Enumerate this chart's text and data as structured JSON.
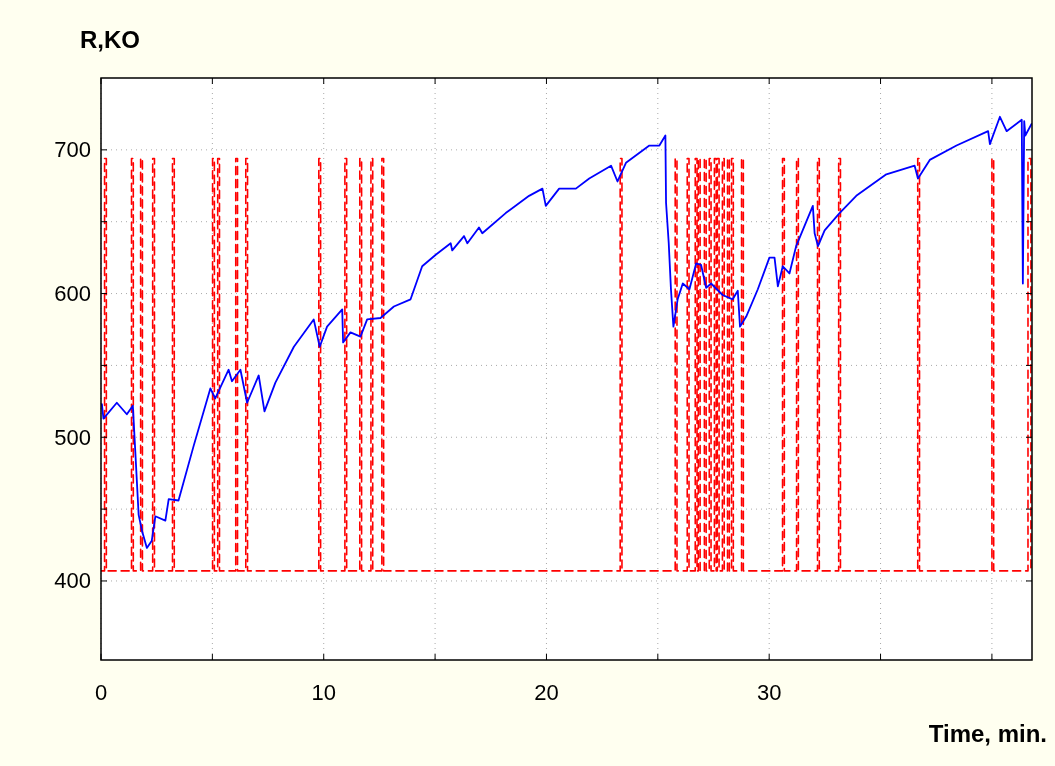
{
  "chart_data": {
    "type": "line",
    "xlabel": "Time, min.",
    "ylabel": "R,KO",
    "xlim": [
      0,
      41.8
    ],
    "ylim": [
      345,
      750
    ],
    "xticks": [
      0,
      {
        "value": 5,
        "label": null
      },
      10,
      {
        "value": 15,
        "label": null
      },
      20,
      {
        "value": 25,
        "label": null
      },
      30,
      {
        "value": 35,
        "label": null
      },
      {
        "value": 40,
        "label": null
      }
    ],
    "yticks": [
      400,
      {
        "value": 450,
        "label": null
      },
      500,
      {
        "value": 550,
        "label": null
      },
      600,
      {
        "value": 650,
        "label": null
      },
      700
    ],
    "grid": true,
    "series": [
      {
        "type": "step",
        "color": "#ff0000",
        "line_style": "dashed",
        "x": [
          0,
          0.16,
          0.24,
          1.37,
          1.45,
          1.78,
          1.86,
          2.32,
          2.4,
          3.21,
          3.29,
          5.01,
          5.09,
          5.24,
          5.32,
          6.05,
          6.13,
          6.5,
          6.58,
          9.78,
          9.86,
          10.95,
          11.03,
          11.62,
          11.7,
          12.12,
          12.2,
          12.61,
          12.69,
          23.31,
          23.39,
          25.78,
          25.86,
          26.32,
          26.4,
          26.68,
          26.76,
          26.82,
          26.9,
          27.09,
          27.17,
          27.31,
          27.39,
          27.54,
          27.62,
          27.67,
          27.75,
          27.9,
          27.98,
          28.13,
          28.21,
          28.31,
          28.39,
          28.76,
          28.84,
          30.6,
          30.68,
          31.23,
          31.31,
          32.17,
          32.25,
          33.12,
          33.2,
          36.67,
          36.75,
          40.0,
          40.08,
          41.62,
          41.75
        ],
        "values": [
          407,
          694,
          407,
          694,
          407,
          694,
          407,
          694,
          407,
          694,
          407,
          694,
          407,
          694,
          407,
          694,
          407,
          694,
          407,
          694,
          407,
          694,
          407,
          694,
          407,
          694,
          407,
          694,
          407,
          694,
          407,
          694,
          407,
          694,
          407,
          694,
          407,
          694,
          407,
          694,
          407,
          694,
          407,
          694,
          407,
          694,
          407,
          694,
          407,
          694,
          407,
          694,
          407,
          694,
          407,
          694,
          407,
          694,
          407,
          694,
          407,
          694,
          407,
          694,
          407,
          694,
          407,
          694,
          407
        ]
      },
      {
        "type": "line",
        "color": "#0000ff",
        "line_style": "solid",
        "x": [
          0.04,
          0.11,
          0.71,
          1.16,
          1.43,
          1.54,
          1.69,
          1.84,
          2.06,
          2.28,
          2.44,
          2.89,
          3.04,
          3.48,
          4.16,
          4.91,
          5.13,
          5.73,
          5.88,
          6.26,
          6.56,
          7.08,
          7.34,
          7.83,
          8.66,
          9.55,
          9.82,
          10.15,
          10.83,
          10.87,
          11.2,
          11.65,
          11.95,
          12.55,
          13.15,
          13.9,
          14.42,
          15.03,
          15.7,
          15.77,
          16.3,
          16.45,
          16.97,
          17.12,
          18.17,
          19.22,
          19.82,
          19.97,
          20.57,
          21.32,
          21.92,
          22.9,
          23.19,
          23.57,
          24.62,
          25.07,
          25.34,
          25.37,
          25.49,
          25.59,
          25.7,
          25.89,
          26.12,
          26.42,
          26.72,
          26.94,
          27.17,
          27.39,
          27.91,
          28.36,
          28.59,
          28.69,
          28.97,
          29.49,
          30.01,
          30.24,
          30.39,
          30.61,
          30.91,
          31.21,
          31.96,
          32.04,
          32.19,
          32.49,
          33.16,
          33.91,
          35.26,
          36.53,
          36.68,
          37.21,
          38.41,
          39.83,
          39.91,
          40.36,
          40.66,
          41.34,
          41.39,
          41.45,
          41.5,
          41.78
        ],
        "values": [
          523,
          513,
          524,
          516,
          522,
          490,
          446,
          435,
          423,
          428,
          445,
          442,
          457,
          456,
          494,
          534,
          527,
          547,
          539,
          547,
          524,
          543,
          518,
          538,
          563,
          582,
          563,
          577,
          589,
          566,
          573,
          570,
          582,
          583,
          591,
          596,
          619,
          627,
          635,
          630,
          640,
          635,
          646,
          642,
          656,
          668,
          673,
          661,
          673,
          673,
          680,
          689,
          678,
          691,
          703,
          703,
          710,
          663,
          635,
          603,
          577,
          596,
          607,
          603,
          621,
          620,
          604,
          607,
          599,
          596,
          602,
          577,
          584,
          603,
          625,
          625,
          605,
          619,
          614,
          633,
          661,
          642,
          633,
          644,
          656,
          668,
          683,
          689,
          680,
          693,
          703,
          713,
          704,
          723,
          713,
          721,
          607,
          720,
          710,
          718
        ]
      }
    ]
  }
}
